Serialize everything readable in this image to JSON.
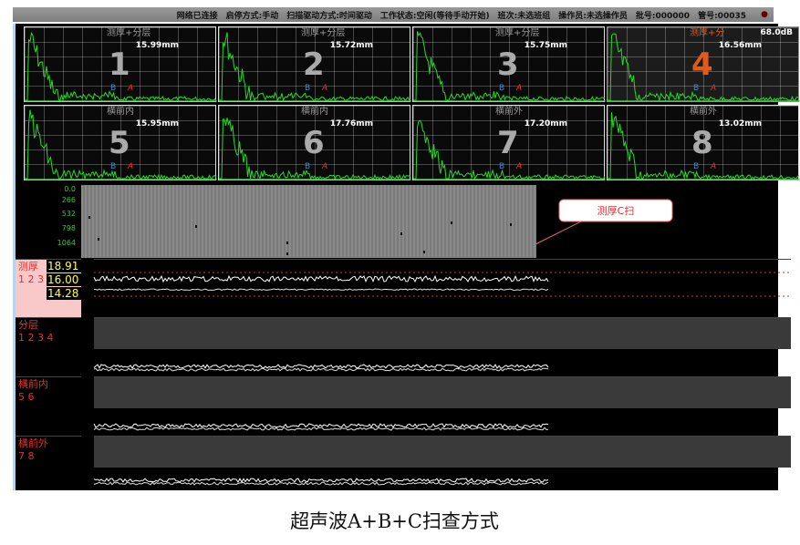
{
  "status_bar": [
    "网络已连接",
    "启停方式:手动",
    "扫描驱动方式:时间驱动",
    "工作状态:空闲(等待手动开始)",
    "班次:未选班组",
    "操作员:未选操作员",
    "批号:000000",
    "管号:00035"
  ],
  "panels": [
    {
      "num": "1",
      "title": "测厚+分层",
      "value": "15.99mm",
      "selected": false
    },
    {
      "num": "2",
      "title": "测厚+分层",
      "value": "15.72mm",
      "selected": false
    },
    {
      "num": "3",
      "title": "测厚+分层",
      "value": "15.75mm",
      "selected": false
    },
    {
      "num": "4",
      "title": "测厚+分",
      "gain": "68.0dB",
      "value": "16.56mm",
      "selected": true
    },
    {
      "num": "5",
      "title": "横前内",
      "value": "15.95mm",
      "selected": false
    },
    {
      "num": "6",
      "title": "横前内",
      "value": "17.76mm",
      "selected": false
    },
    {
      "num": "7",
      "title": "横前外",
      "value": "17.20mm",
      "selected": false
    },
    {
      "num": "8",
      "title": "横前外",
      "value": "13.02mm",
      "selected": false
    }
  ],
  "gate_labels": {
    "b": "B",
    "a": "A"
  },
  "cscan": {
    "axis_ticks": [
      "0.0",
      "266",
      "532",
      "798",
      "1064"
    ],
    "callout": "测厚C扫"
  },
  "channels": [
    {
      "name": "测厚",
      "ids": "1 2 3",
      "readings": [
        "18.91",
        "16.00",
        "14.28"
      ]
    },
    {
      "name": "分层",
      "ids": "1 2 3 4"
    },
    {
      "name": "横前内",
      "ids": "5 6"
    },
    {
      "name": "横前外",
      "ids": "7 8"
    }
  ],
  "caption": "超声波A+B+C扫查方式",
  "colors": {
    "wave": "#22dd22",
    "selected": "#e05a1a",
    "reading": "#ffff44",
    "label": "#e03030"
  }
}
